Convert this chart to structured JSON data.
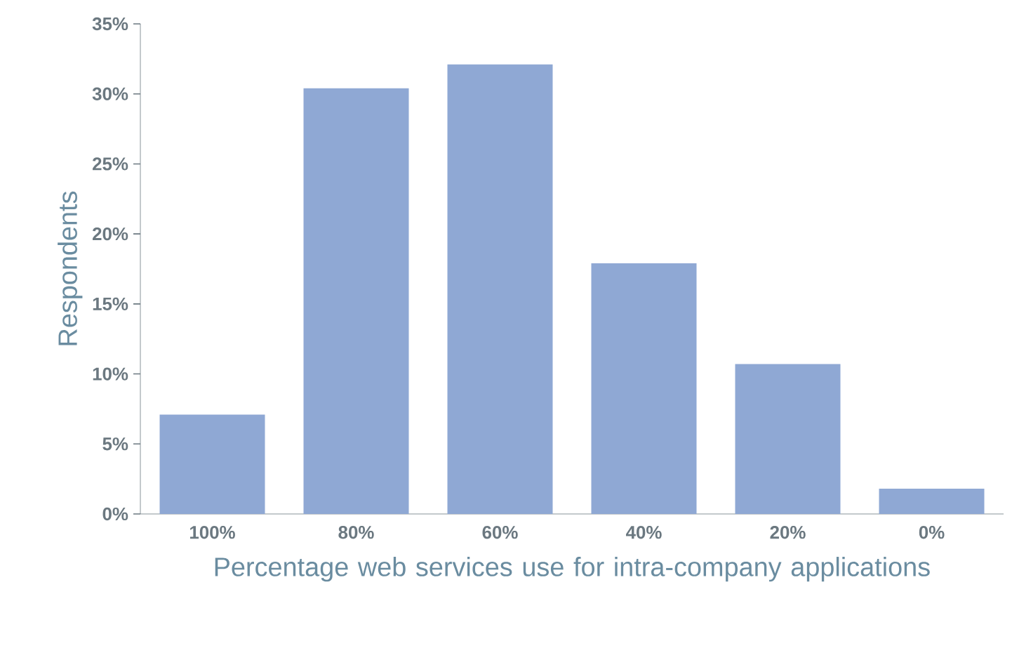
{
  "chart_data": {
    "type": "bar",
    "xlabel": "Percentage web services use for intra-company applications",
    "ylabel": "Respondents",
    "categories": [
      "100%",
      "80%",
      "60%",
      "40%",
      "20%",
      "0%"
    ],
    "values": [
      7.1,
      30.4,
      32.1,
      17.9,
      10.7,
      1.8
    ],
    "color": "#8fa8d4",
    "ylim": [
      0,
      35
    ],
    "yticks": [
      {
        "value": 0,
        "label": "0%"
      },
      {
        "value": 5,
        "label": "5%"
      },
      {
        "value": 10,
        "label": "10%"
      },
      {
        "value": 15,
        "label": "15%"
      },
      {
        "value": 20,
        "label": "20%"
      },
      {
        "value": 25,
        "label": "25%"
      },
      {
        "value": 30,
        "label": "30%"
      },
      {
        "value": 35,
        "label": "35%"
      }
    ]
  }
}
